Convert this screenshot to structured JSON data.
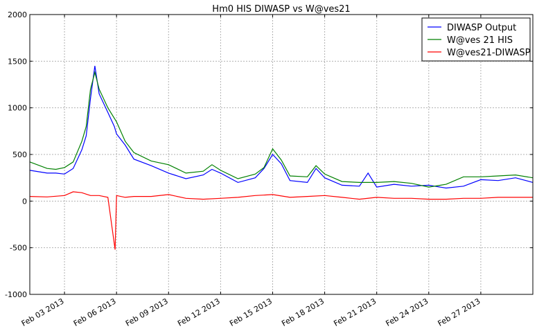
{
  "chart_data": {
    "type": "line",
    "title": "Hm0 HIS DIWASP vs W@ves21",
    "xlabel": "",
    "ylabel": "",
    "ylim": [
      -1000,
      2000
    ],
    "yticks": [
      -1000,
      -500,
      0,
      500,
      1000,
      1500,
      2000
    ],
    "xlim": [
      "2013-02-01",
      "2013-03-02"
    ],
    "xticks": [
      {
        "date": "2013-02-03",
        "label": "Feb 03 2013"
      },
      {
        "date": "2013-02-06",
        "label": "Feb 06 2013"
      },
      {
        "date": "2013-02-09",
        "label": "Feb 09 2013"
      },
      {
        "date": "2013-02-12",
        "label": "Feb 12 2013"
      },
      {
        "date": "2013-02-15",
        "label": "Feb 15 2013"
      },
      {
        "date": "2013-02-18",
        "label": "Feb 18 2013"
      },
      {
        "date": "2013-02-21",
        "label": "Feb 21 2013"
      },
      {
        "date": "2013-02-24",
        "label": "Feb 24 2013"
      },
      {
        "date": "2013-02-27",
        "label": "Feb 27 2013"
      }
    ],
    "grid": true,
    "legend_position": "top-right",
    "series": [
      {
        "name": "DIWASP Output",
        "color": "#0000ff",
        "x": [
          "2013-02-01",
          "2013-02-02",
          "2013-02-02 12:00",
          "2013-02-03",
          "2013-02-03 12:00",
          "2013-02-04",
          "2013-02-04 06:00",
          "2013-02-04 12:00",
          "2013-02-04 18:00",
          "2013-02-05",
          "2013-02-05 12:00",
          "2013-02-05 21:00",
          "2013-02-06",
          "2013-02-06 12:00",
          "2013-02-07",
          "2013-02-08",
          "2013-02-09",
          "2013-02-10",
          "2013-02-11",
          "2013-02-11 12:00",
          "2013-02-12",
          "2013-02-13",
          "2013-02-14",
          "2013-02-14 12:00",
          "2013-02-15",
          "2013-02-15 12:00",
          "2013-02-16",
          "2013-02-17",
          "2013-02-17 12:00",
          "2013-02-18",
          "2013-02-19",
          "2013-02-20",
          "2013-02-20 12:00",
          "2013-02-21",
          "2013-02-22",
          "2013-02-23",
          "2013-02-24",
          "2013-02-25",
          "2013-02-26",
          "2013-02-27",
          "2013-02-28",
          "2013-03-01",
          "2013-03-02"
        ],
        "values": [
          330,
          300,
          300,
          290,
          350,
          550,
          700,
          1100,
          1450,
          1150,
          950,
          800,
          720,
          600,
          450,
          380,
          300,
          240,
          280,
          340,
          300,
          200,
          250,
          350,
          500,
          400,
          220,
          200,
          350,
          250,
          170,
          160,
          300,
          150,
          180,
          160,
          170,
          140,
          160,
          230,
          220,
          250,
          200
        ]
      },
      {
        "name": "W@ves 21 HIS",
        "color": "#008000",
        "x": [
          "2013-02-01",
          "2013-02-02",
          "2013-02-02 12:00",
          "2013-02-03",
          "2013-02-03 12:00",
          "2013-02-04",
          "2013-02-04 06:00",
          "2013-02-04 12:00",
          "2013-02-04 18:00",
          "2013-02-05",
          "2013-02-05 12:00",
          "2013-02-06",
          "2013-02-06 12:00",
          "2013-02-07",
          "2013-02-08",
          "2013-02-09",
          "2013-02-10",
          "2013-02-11",
          "2013-02-11 12:00",
          "2013-02-12",
          "2013-02-13",
          "2013-02-14",
          "2013-02-14 12:00",
          "2013-02-15",
          "2013-02-15 12:00",
          "2013-02-16",
          "2013-02-17",
          "2013-02-17 12:00",
          "2013-02-18",
          "2013-02-19",
          "2013-02-20",
          "2013-02-21",
          "2013-02-22",
          "2013-02-23",
          "2013-02-24",
          "2013-02-25",
          "2013-02-26",
          "2013-02-27",
          "2013-02-28",
          "2013-03-01",
          "2013-03-02"
        ],
        "values": [
          420,
          350,
          340,
          360,
          420,
          640,
          800,
          1200,
          1380,
          1200,
          1000,
          850,
          640,
          520,
          430,
          390,
          300,
          320,
          390,
          330,
          240,
          290,
          360,
          560,
          440,
          270,
          260,
          380,
          290,
          210,
          200,
          200,
          210,
          190,
          150,
          180,
          260,
          260,
          270,
          280,
          250
        ]
      },
      {
        "name": "W@ves21-DIWASP",
        "color": "#ff0000",
        "x": [
          "2013-02-01",
          "2013-02-02",
          "2013-02-03",
          "2013-02-03 12:00",
          "2013-02-04",
          "2013-02-04 12:00",
          "2013-02-05",
          "2013-02-05 12:00",
          "2013-02-05 22:00",
          "2013-02-06",
          "2013-02-06 12:00",
          "2013-02-07",
          "2013-02-08",
          "2013-02-09",
          "2013-02-10",
          "2013-02-11",
          "2013-02-12",
          "2013-02-13",
          "2013-02-14",
          "2013-02-15",
          "2013-02-16",
          "2013-02-17",
          "2013-02-18",
          "2013-02-19",
          "2013-02-20",
          "2013-02-21",
          "2013-02-22",
          "2013-02-23",
          "2013-02-24",
          "2013-02-25",
          "2013-02-26",
          "2013-02-27",
          "2013-02-28",
          "2013-03-01",
          "2013-03-02"
        ],
        "values": [
          50,
          45,
          60,
          100,
          90,
          60,
          60,
          40,
          -520,
          60,
          40,
          50,
          50,
          70,
          30,
          20,
          30,
          40,
          60,
          70,
          40,
          50,
          60,
          40,
          20,
          40,
          30,
          30,
          20,
          20,
          30,
          30,
          40,
          40,
          40
        ]
      }
    ]
  }
}
